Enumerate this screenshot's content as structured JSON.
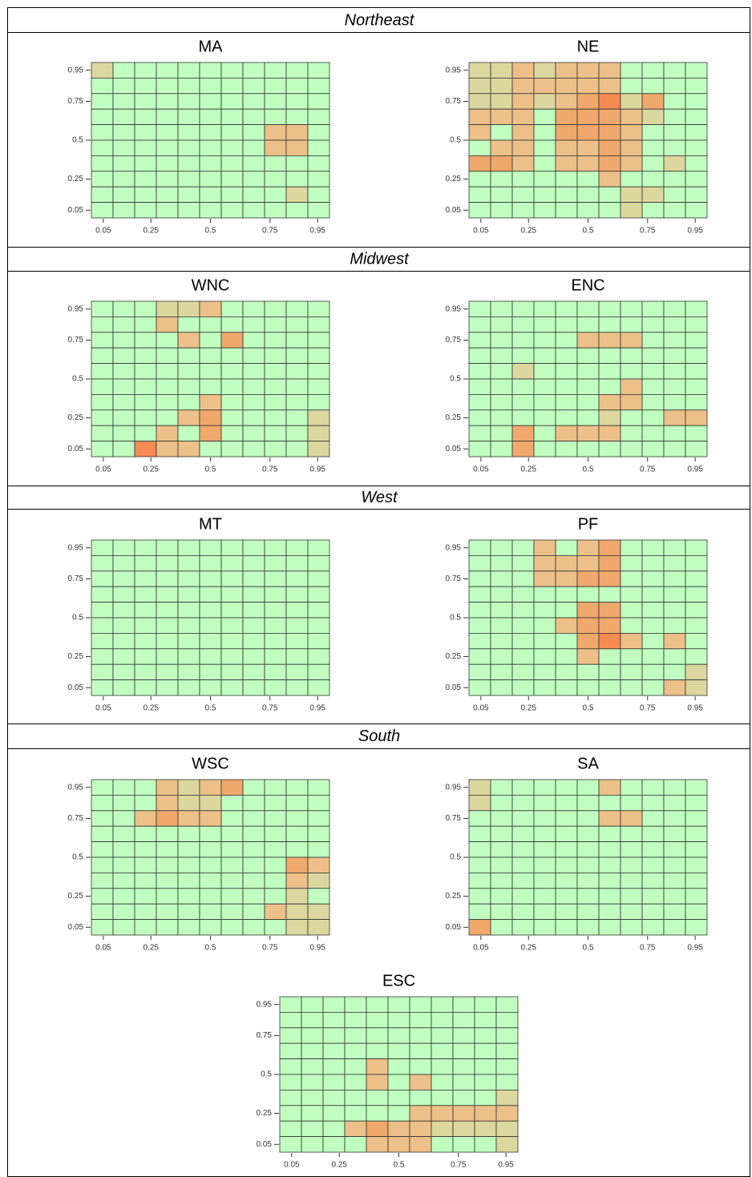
{
  "sections": [
    {
      "title": "Northeast"
    },
    {
      "title": "Midwest"
    },
    {
      "title": "West"
    },
    {
      "title": "South"
    }
  ],
  "chart_data": [
    {
      "type": "heatmap",
      "title": "MA",
      "xlim": [
        0,
        1
      ],
      "ylim": [
        0,
        1
      ],
      "xticks": [
        0.05,
        0.25,
        0.5,
        0.75,
        0.95
      ],
      "yticks": [
        0.05,
        0.25,
        0.5,
        0.75,
        0.95
      ],
      "colors": [
        "#c0ffc0",
        "#dcd79e",
        "#ecc088",
        "#f0a86c",
        "#f58a52"
      ],
      "cells": [
        [
          1,
          0,
          0,
          0,
          0,
          0,
          0,
          0,
          0,
          0,
          0
        ],
        [
          0,
          0,
          0,
          0,
          0,
          0,
          0,
          0,
          0,
          0,
          0
        ],
        [
          0,
          0,
          0,
          0,
          0,
          0,
          0,
          0,
          0,
          0,
          0
        ],
        [
          0,
          0,
          0,
          0,
          0,
          0,
          0,
          0,
          0,
          0,
          0
        ],
        [
          0,
          0,
          0,
          0,
          0,
          0,
          0,
          0,
          2,
          2,
          0
        ],
        [
          0,
          0,
          0,
          0,
          0,
          0,
          0,
          0,
          2,
          2,
          0
        ],
        [
          0,
          0,
          0,
          0,
          0,
          0,
          0,
          0,
          0,
          0,
          0
        ],
        [
          0,
          0,
          0,
          0,
          0,
          0,
          0,
          0,
          0,
          0,
          0
        ],
        [
          0,
          0,
          0,
          0,
          0,
          0,
          0,
          0,
          0,
          1,
          0
        ],
        [
          0,
          0,
          0,
          0,
          0,
          0,
          0,
          0,
          0,
          0,
          0
        ]
      ]
    },
    {
      "type": "heatmap",
      "title": "NE",
      "xlim": [
        0,
        1
      ],
      "ylim": [
        0,
        1
      ],
      "xticks": [
        0.05,
        0.25,
        0.5,
        0.75,
        0.95
      ],
      "yticks": [
        0.05,
        0.25,
        0.5,
        0.75,
        0.95
      ],
      "colors": [
        "#c0ffc0",
        "#dcd79e",
        "#ecc088",
        "#f0a86c",
        "#f58a52"
      ],
      "cells": [
        [
          1,
          1,
          2,
          1,
          2,
          2,
          2,
          0,
          0,
          0,
          0
        ],
        [
          1,
          1,
          2,
          2,
          2,
          2,
          2,
          0,
          0,
          0,
          0
        ],
        [
          1,
          1,
          2,
          1,
          2,
          3,
          4,
          1,
          3,
          0,
          0
        ],
        [
          2,
          2,
          2,
          0,
          3,
          3,
          3,
          2,
          1,
          0,
          0
        ],
        [
          2,
          0,
          2,
          0,
          3,
          3,
          3,
          2,
          0,
          0,
          0
        ],
        [
          0,
          2,
          2,
          0,
          2,
          2,
          3,
          2,
          0,
          0,
          0
        ],
        [
          3,
          3,
          2,
          0,
          2,
          2,
          3,
          2,
          0,
          1,
          0
        ],
        [
          0,
          0,
          0,
          0,
          0,
          0,
          2,
          0,
          0,
          0,
          0
        ],
        [
          0,
          0,
          0,
          0,
          0,
          0,
          0,
          1,
          1,
          0,
          0
        ],
        [
          0,
          0,
          0,
          0,
          0,
          0,
          0,
          1,
          0,
          0,
          0
        ]
      ]
    },
    {
      "type": "heatmap",
      "title": "WNC",
      "xlim": [
        0,
        1
      ],
      "ylim": [
        0,
        1
      ],
      "xticks": [
        0.05,
        0.25,
        0.5,
        0.75,
        0.95
      ],
      "yticks": [
        0.05,
        0.25,
        0.5,
        0.75,
        0.95
      ],
      "colors": [
        "#c0ffc0",
        "#dcd79e",
        "#ecc088",
        "#f0a86c",
        "#f58a52"
      ],
      "cells": [
        [
          0,
          0,
          0,
          1,
          1,
          2,
          0,
          0,
          0,
          0,
          0
        ],
        [
          0,
          0,
          0,
          2,
          0,
          0,
          0,
          0,
          0,
          0,
          0
        ],
        [
          0,
          0,
          0,
          0,
          2,
          0,
          3,
          0,
          0,
          0,
          0
        ],
        [
          0,
          0,
          0,
          0,
          0,
          0,
          0,
          0,
          0,
          0,
          0
        ],
        [
          0,
          0,
          0,
          0,
          0,
          0,
          0,
          0,
          0,
          0,
          0
        ],
        [
          0,
          0,
          0,
          0,
          0,
          0,
          0,
          0,
          0,
          0,
          0
        ],
        [
          0,
          0,
          0,
          0,
          0,
          2,
          0,
          0,
          0,
          0,
          0
        ],
        [
          0,
          0,
          0,
          0,
          2,
          3,
          0,
          0,
          0,
          0,
          1
        ],
        [
          0,
          0,
          0,
          2,
          0,
          3,
          0,
          0,
          0,
          0,
          1
        ],
        [
          0,
          0,
          4,
          2,
          2,
          0,
          0,
          0,
          0,
          0,
          1
        ]
      ]
    },
    {
      "type": "heatmap",
      "title": "ENC",
      "xlim": [
        0,
        1
      ],
      "ylim": [
        0,
        1
      ],
      "xticks": [
        0.05,
        0.25,
        0.5,
        0.75,
        0.95
      ],
      "yticks": [
        0.05,
        0.25,
        0.5,
        0.75,
        0.95
      ],
      "colors": [
        "#c0ffc0",
        "#dcd79e",
        "#ecc088",
        "#f0a86c",
        "#f58a52"
      ],
      "cells": [
        [
          0,
          0,
          0,
          0,
          0,
          0,
          0,
          0,
          0,
          0,
          0
        ],
        [
          0,
          0,
          0,
          0,
          0,
          0,
          0,
          0,
          0,
          0,
          0
        ],
        [
          0,
          0,
          0,
          0,
          0,
          2,
          2,
          2,
          0,
          0,
          0
        ],
        [
          0,
          0,
          0,
          0,
          0,
          0,
          0,
          0,
          0,
          0,
          0
        ],
        [
          0,
          0,
          1,
          0,
          0,
          0,
          0,
          0,
          0,
          0,
          0
        ],
        [
          0,
          0,
          0,
          0,
          0,
          0,
          0,
          2,
          0,
          0,
          0
        ],
        [
          0,
          0,
          0,
          0,
          0,
          0,
          2,
          2,
          0,
          0,
          0
        ],
        [
          0,
          0,
          0,
          0,
          0,
          0,
          1,
          0,
          0,
          2,
          2
        ],
        [
          0,
          0,
          3,
          0,
          2,
          2,
          2,
          0,
          0,
          0,
          0
        ],
        [
          0,
          0,
          3,
          0,
          0,
          0,
          0,
          0,
          0,
          0,
          0
        ]
      ]
    },
    {
      "type": "heatmap",
      "title": "MT",
      "xlim": [
        0,
        1
      ],
      "ylim": [
        0,
        1
      ],
      "xticks": [
        0.05,
        0.25,
        0.5,
        0.75,
        0.95
      ],
      "yticks": [
        0.05,
        0.25,
        0.5,
        0.75,
        0.95
      ],
      "colors": [
        "#c0ffc0",
        "#dcd79e",
        "#ecc088",
        "#f0a86c",
        "#f58a52"
      ],
      "cells": [
        [
          0,
          0,
          0,
          0,
          0,
          0,
          0,
          0,
          0,
          0,
          0
        ],
        [
          0,
          0,
          0,
          0,
          0,
          0,
          0,
          0,
          0,
          0,
          0
        ],
        [
          0,
          0,
          0,
          0,
          0,
          0,
          0,
          0,
          0,
          0,
          0
        ],
        [
          0,
          0,
          0,
          0,
          0,
          0,
          0,
          0,
          0,
          0,
          0
        ],
        [
          0,
          0,
          0,
          0,
          0,
          0,
          0,
          0,
          0,
          0,
          0
        ],
        [
          0,
          0,
          0,
          0,
          0,
          0,
          0,
          0,
          0,
          0,
          0
        ],
        [
          0,
          0,
          0,
          0,
          0,
          0,
          0,
          0,
          0,
          0,
          0
        ],
        [
          0,
          0,
          0,
          0,
          0,
          0,
          0,
          0,
          0,
          0,
          0
        ],
        [
          0,
          0,
          0,
          0,
          0,
          0,
          0,
          0,
          0,
          0,
          0
        ],
        [
          0,
          0,
          0,
          0,
          0,
          0,
          0,
          0,
          0,
          0,
          0
        ]
      ]
    },
    {
      "type": "heatmap",
      "title": "PF",
      "xlim": [
        0,
        1
      ],
      "ylim": [
        0,
        1
      ],
      "xticks": [
        0.05,
        0.25,
        0.5,
        0.75,
        0.95
      ],
      "yticks": [
        0.05,
        0.25,
        0.5,
        0.75,
        0.95
      ],
      "colors": [
        "#c0ffc0",
        "#dcd79e",
        "#ecc088",
        "#f0a86c",
        "#f58a52"
      ],
      "cells": [
        [
          0,
          0,
          0,
          2,
          0,
          2,
          3,
          0,
          0,
          0,
          0
        ],
        [
          0,
          0,
          0,
          2,
          2,
          2,
          3,
          0,
          0,
          0,
          0
        ],
        [
          0,
          0,
          0,
          2,
          2,
          3,
          3,
          0,
          0,
          0,
          0
        ],
        [
          0,
          0,
          0,
          0,
          0,
          0,
          0,
          0,
          0,
          0,
          0
        ],
        [
          0,
          0,
          0,
          0,
          0,
          3,
          3,
          0,
          0,
          0,
          0
        ],
        [
          0,
          0,
          0,
          0,
          2,
          3,
          3,
          0,
          0,
          0,
          0
        ],
        [
          0,
          0,
          0,
          0,
          0,
          3,
          4,
          2,
          0,
          2,
          0
        ],
        [
          0,
          0,
          0,
          0,
          0,
          2,
          0,
          0,
          0,
          0,
          0
        ],
        [
          0,
          0,
          0,
          0,
          0,
          0,
          0,
          0,
          0,
          0,
          1
        ],
        [
          0,
          0,
          0,
          0,
          0,
          0,
          0,
          0,
          0,
          2,
          1
        ]
      ]
    },
    {
      "type": "heatmap",
      "title": "WSC",
      "xlim": [
        0,
        1
      ],
      "ylim": [
        0,
        1
      ],
      "xticks": [
        0.05,
        0.25,
        0.5,
        0.75,
        0.95
      ],
      "yticks": [
        0.05,
        0.25,
        0.5,
        0.75,
        0.95
      ],
      "colors": [
        "#c0ffc0",
        "#dcd79e",
        "#ecc088",
        "#f0a86c",
        "#f58a52"
      ],
      "cells": [
        [
          0,
          0,
          0,
          2,
          1,
          2,
          3,
          0,
          0,
          0,
          0
        ],
        [
          0,
          0,
          0,
          2,
          1,
          1,
          0,
          0,
          0,
          0,
          0
        ],
        [
          0,
          0,
          2,
          3,
          2,
          2,
          0,
          0,
          0,
          0,
          0
        ],
        [
          0,
          0,
          0,
          0,
          0,
          0,
          0,
          0,
          0,
          0,
          0
        ],
        [
          0,
          0,
          0,
          0,
          0,
          0,
          0,
          0,
          0,
          0,
          0
        ],
        [
          0,
          0,
          0,
          0,
          0,
          0,
          0,
          0,
          0,
          3,
          2
        ],
        [
          0,
          0,
          0,
          0,
          0,
          0,
          0,
          0,
          0,
          2,
          1
        ],
        [
          0,
          0,
          0,
          0,
          0,
          0,
          0,
          0,
          0,
          1,
          0
        ],
        [
          0,
          0,
          0,
          0,
          0,
          0,
          0,
          0,
          2,
          1,
          1
        ],
        [
          0,
          0,
          0,
          0,
          0,
          0,
          0,
          0,
          0,
          1,
          1
        ]
      ]
    },
    {
      "type": "heatmap",
      "title": "SA",
      "xlim": [
        0,
        1
      ],
      "ylim": [
        0,
        1
      ],
      "xticks": [
        0.05,
        0.25,
        0.5,
        0.75,
        0.95
      ],
      "yticks": [
        0.05,
        0.25,
        0.5,
        0.75,
        0.95
      ],
      "colors": [
        "#c0ffc0",
        "#dcd79e",
        "#ecc088",
        "#f0a86c",
        "#f58a52"
      ],
      "cells": [
        [
          1,
          0,
          0,
          0,
          0,
          0,
          2,
          0,
          0,
          0,
          0
        ],
        [
          1,
          0,
          0,
          0,
          0,
          0,
          0,
          0,
          0,
          0,
          0
        ],
        [
          0,
          0,
          0,
          0,
          0,
          0,
          2,
          2,
          0,
          0,
          0
        ],
        [
          0,
          0,
          0,
          0,
          0,
          0,
          0,
          0,
          0,
          0,
          0
        ],
        [
          0,
          0,
          0,
          0,
          0,
          0,
          0,
          0,
          0,
          0,
          0
        ],
        [
          0,
          0,
          0,
          0,
          0,
          0,
          0,
          0,
          0,
          0,
          0
        ],
        [
          0,
          0,
          0,
          0,
          0,
          0,
          0,
          0,
          0,
          0,
          0
        ],
        [
          0,
          0,
          0,
          0,
          0,
          0,
          0,
          0,
          0,
          0,
          0
        ],
        [
          0,
          0,
          0,
          0,
          0,
          0,
          0,
          0,
          0,
          0,
          0
        ],
        [
          3,
          0,
          0,
          0,
          0,
          0,
          0,
          0,
          0,
          0,
          0
        ]
      ]
    },
    {
      "type": "heatmap",
      "title": "ESC",
      "xlim": [
        0,
        1
      ],
      "ylim": [
        0,
        1
      ],
      "xticks": [
        0.05,
        0.25,
        0.5,
        0.75,
        0.95
      ],
      "yticks": [
        0.05,
        0.25,
        0.5,
        0.75,
        0.95
      ],
      "colors": [
        "#c0ffc0",
        "#dcd79e",
        "#ecc088",
        "#f0a86c",
        "#f58a52"
      ],
      "cells": [
        [
          0,
          0,
          0,
          0,
          0,
          0,
          0,
          0,
          0,
          0,
          0
        ],
        [
          0,
          0,
          0,
          0,
          0,
          0,
          0,
          0,
          0,
          0,
          0
        ],
        [
          0,
          0,
          0,
          0,
          0,
          0,
          0,
          0,
          0,
          0,
          0
        ],
        [
          0,
          0,
          0,
          0,
          0,
          0,
          0,
          0,
          0,
          0,
          0
        ],
        [
          0,
          0,
          0,
          0,
          2,
          0,
          0,
          0,
          0,
          0,
          0
        ],
        [
          0,
          0,
          0,
          0,
          2,
          0,
          2,
          0,
          0,
          0,
          0
        ],
        [
          0,
          0,
          0,
          0,
          0,
          0,
          0,
          0,
          0,
          0,
          1
        ],
        [
          0,
          0,
          0,
          0,
          0,
          0,
          2,
          2,
          2,
          2,
          2
        ],
        [
          0,
          0,
          0,
          2,
          3,
          2,
          2,
          1,
          1,
          1,
          1
        ],
        [
          0,
          0,
          0,
          0,
          2,
          2,
          2,
          0,
          0,
          0,
          1
        ]
      ]
    }
  ]
}
